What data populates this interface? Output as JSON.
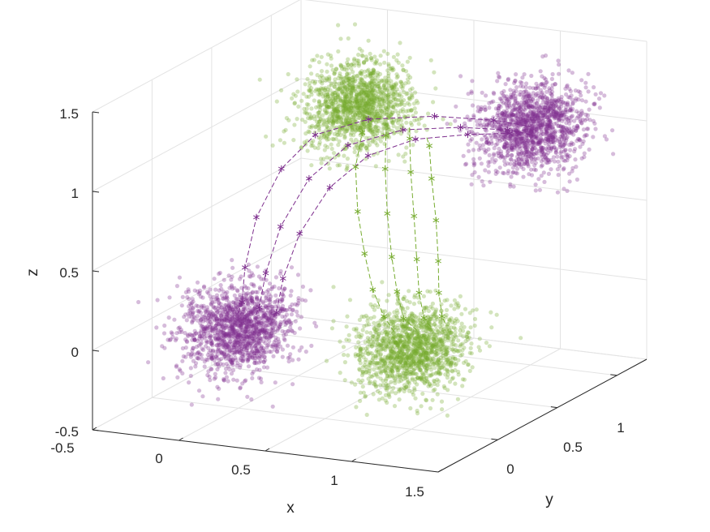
{
  "chart_data": {
    "type": "scatter",
    "dimensions": 3,
    "title": "",
    "xlabel": "x",
    "ylabel": "y",
    "zlabel": "z",
    "xlim": [
      -0.5,
      1.5
    ],
    "ylim": [
      -0.5,
      1.25
    ],
    "zlim": [
      -0.5,
      1.5
    ],
    "grid": true,
    "x_ticks": [
      "-0.5",
      "0",
      "0.5",
      "1",
      "1.5"
    ],
    "y_ticks": [
      "0",
      "0.5",
      "1"
    ],
    "z_ticks": [
      "-0.5",
      "0",
      "0.5",
      "1",
      "1.5"
    ],
    "colors": {
      "purple": "#7e2f8e",
      "green": "#77ac30"
    },
    "clusters": [
      {
        "color": "purple",
        "center": [
          0,
          0,
          0
        ],
        "spread": 0.13
      },
      {
        "color": "green",
        "center": [
          1,
          0,
          0
        ],
        "spread": 0.13
      },
      {
        "color": "green",
        "center": [
          0,
          1,
          1
        ],
        "spread": 0.13
      },
      {
        "color": "purple",
        "center": [
          1,
          1,
          1
        ],
        "spread": 0.13
      }
    ],
    "trajectories": [
      {
        "color": "purple",
        "marker": "*",
        "line": "dashed",
        "from": [
          0,
          0,
          0.1
        ],
        "to": [
          1,
          1,
          1
        ],
        "path": [
          [
            0.02,
            0.0,
            0.17
          ],
          [
            0.01,
            0.04,
            0.37
          ],
          [
            0.0,
            0.15,
            0.64
          ],
          [
            0.0,
            0.36,
            0.86
          ],
          [
            0.03,
            0.6,
            0.98
          ],
          [
            0.2,
            0.8,
            1.02
          ],
          [
            0.5,
            0.92,
            1.03
          ],
          [
            0.8,
            0.98,
            1.02
          ]
        ]
      },
      {
        "color": "purple",
        "marker": "*",
        "line": "dashed",
        "from": [
          0.1,
          0,
          0.1
        ],
        "to": [
          1,
          1,
          0.95
        ],
        "path": [
          [
            0.12,
            0.0,
            0.15
          ],
          [
            0.13,
            0.04,
            0.35
          ],
          [
            0.14,
            0.15,
            0.6
          ],
          [
            0.16,
            0.36,
            0.82
          ],
          [
            0.22,
            0.6,
            0.94
          ],
          [
            0.4,
            0.8,
            0.98
          ],
          [
            0.65,
            0.92,
            0.98
          ],
          [
            0.88,
            0.98,
            0.97
          ]
        ]
      },
      {
        "color": "purple",
        "marker": "*",
        "line": "dashed",
        "from": [
          0.2,
          0,
          0.1
        ],
        "to": [
          1,
          0.95,
          1
        ],
        "path": [
          [
            0.22,
            0.0,
            0.13
          ],
          [
            0.23,
            0.04,
            0.33
          ],
          [
            0.25,
            0.15,
            0.57
          ],
          [
            0.28,
            0.36,
            0.78
          ],
          [
            0.35,
            0.58,
            0.9
          ],
          [
            0.5,
            0.76,
            0.95
          ],
          [
            0.72,
            0.88,
            0.96
          ],
          [
            0.92,
            0.94,
            0.97
          ]
        ]
      },
      {
        "color": "green",
        "marker": "*",
        "line": "dashed",
        "from": [
          0.1,
          0.9,
          0.9
        ],
        "to": [
          0.9,
          0,
          0.1
        ],
        "path": [
          [
            0.15,
            0.82,
            0.92
          ],
          [
            0.25,
            0.62,
            0.8
          ],
          [
            0.4,
            0.42,
            0.62
          ],
          [
            0.55,
            0.26,
            0.44
          ],
          [
            0.68,
            0.14,
            0.28
          ],
          [
            0.8,
            0.06,
            0.16
          ]
        ]
      },
      {
        "color": "green",
        "marker": "*",
        "line": "dashed",
        "from": [
          0.2,
          0.95,
          0.9
        ],
        "to": [
          1,
          0.05,
          0.1
        ],
        "path": [
          [
            0.26,
            0.86,
            0.9
          ],
          [
            0.38,
            0.68,
            0.78
          ],
          [
            0.53,
            0.48,
            0.6
          ],
          [
            0.68,
            0.3,
            0.42
          ],
          [
            0.8,
            0.17,
            0.27
          ],
          [
            0.9,
            0.08,
            0.15
          ]
        ]
      },
      {
        "color": "green",
        "marker": "*",
        "line": "dashed",
        "from": [
          0.3,
          1,
          0.9
        ],
        "to": [
          1.05,
          0.1,
          0.1
        ],
        "path": [
          [
            0.37,
            0.9,
            0.88
          ],
          [
            0.5,
            0.72,
            0.76
          ],
          [
            0.65,
            0.53,
            0.58
          ],
          [
            0.79,
            0.35,
            0.4
          ],
          [
            0.9,
            0.21,
            0.26
          ],
          [
            0.99,
            0.12,
            0.15
          ]
        ]
      },
      {
        "color": "green",
        "marker": "*",
        "line": "dashed",
        "from": [
          0.4,
          1,
          0.85
        ],
        "to": [
          1.1,
          0.15,
          0.1
        ],
        "path": [
          [
            0.47,
            0.92,
            0.84
          ],
          [
            0.6,
            0.75,
            0.72
          ],
          [
            0.75,
            0.57,
            0.55
          ],
          [
            0.88,
            0.4,
            0.38
          ],
          [
            0.98,
            0.26,
            0.25
          ],
          [
            1.06,
            0.17,
            0.15
          ]
        ]
      }
    ]
  }
}
